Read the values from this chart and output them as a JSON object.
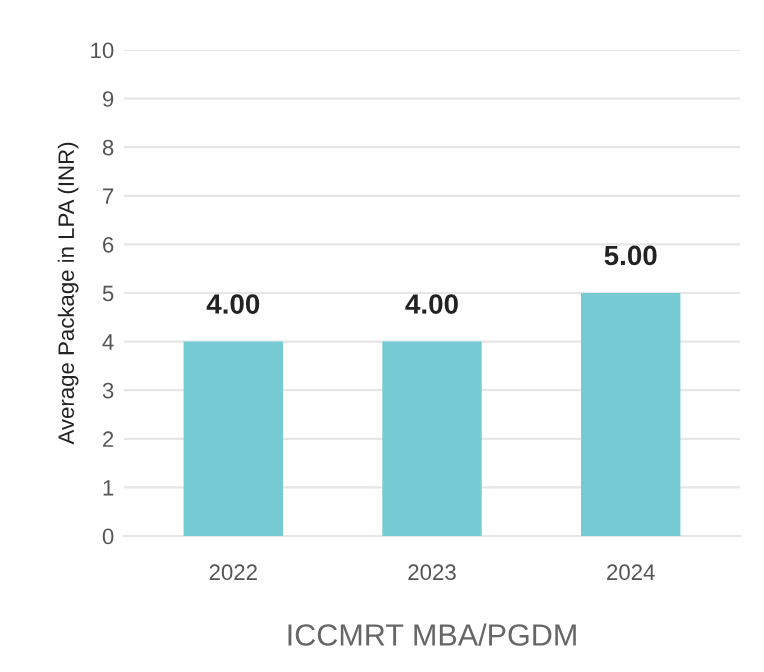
{
  "chart_data": {
    "type": "bar",
    "xlabel": "ICCMRT MBA/PGDM",
    "ylabel": "Average Package in LPA (INR)",
    "categories": [
      "2022",
      "2023",
      "2024"
    ],
    "values": [
      4,
      4,
      5
    ],
    "value_labels": [
      "4.00",
      "4.00",
      "5.00"
    ],
    "color": "#75cbd3",
    "ylim": [
      0,
      10
    ],
    "yticks": [
      0,
      1,
      2,
      3,
      4,
      5,
      6,
      7,
      8,
      9,
      10
    ],
    "grid": "y"
  }
}
